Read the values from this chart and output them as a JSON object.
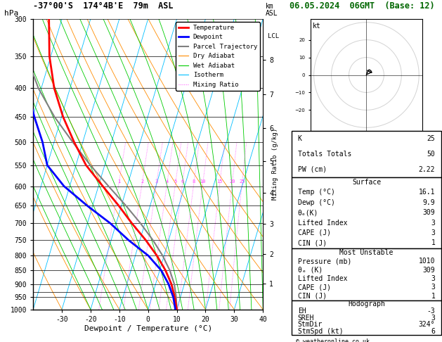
{
  "title_left": "-37°00'S  174°4B'E  79m  ASL",
  "title_right": "06.05.2024  06GMT  (Base: 12)",
  "ylabel_left": "hPa",
  "ylabel_right_km": "km\nASL",
  "ylabel_right_mixing": "Mixing Ratio (g/kg)",
  "xlabel": "Dewpoint / Temperature (°C)",
  "background_color": "#ffffff",
  "plot_bg": "#ffffff",
  "isotherm_color": "#00bfff",
  "dry_adiabat_color": "#ff8c00",
  "wet_adiabat_color": "#00cc00",
  "mixing_ratio_color": "#ff44ff",
  "temp_line_color": "#ff0000",
  "dewp_line_color": "#0000ff",
  "parcel_color": "#808080",
  "grid_color": "#000000",
  "lcl_pres": 930,
  "temp_range": [
    -40,
    40
  ],
  "temp_ticks": [
    -30,
    -20,
    -10,
    0,
    10,
    20,
    30,
    40
  ],
  "pres_levels": [
    300,
    350,
    400,
    450,
    500,
    550,
    600,
    650,
    700,
    750,
    800,
    850,
    900,
    950,
    1000
  ],
  "skew_factor": 30.0,
  "stats": {
    "K": 25,
    "Totals_Totals": 50,
    "PW_cm": 2.22,
    "Surface_Temp_C": 16.1,
    "Surface_Dewp_C": 9.9,
    "Surface_ThetaE_K": 309,
    "Surface_Lifted_Index": 3,
    "Surface_CAPE_J": 3,
    "Surface_CIN_J": 1,
    "MU_Pressure_mb": 1010,
    "MU_ThetaE_K": 309,
    "MU_Lifted_Index": 3,
    "MU_CAPE_J": 3,
    "MU_CIN_J": 1,
    "Hodo_EH": -3,
    "Hodo_SREH": 3,
    "Hodo_StmDir": "324°",
    "Hodo_StmSpd_kt": 6
  },
  "temp_profile_T": [
    10.0,
    8.0,
    5.5,
    2.0,
    -2.5,
    -8.0,
    -14.5,
    -21.0,
    -28.5,
    -36.5,
    -43.0,
    -49.5,
    -55.5,
    -60.5,
    -64.5
  ],
  "temp_profile_P": [
    1000,
    950,
    900,
    850,
    800,
    750,
    700,
    650,
    600,
    550,
    500,
    450,
    400,
    350,
    300
  ],
  "dewp_profile_T": [
    9.5,
    7.5,
    4.5,
    0.5,
    -5.5,
    -14.0,
    -22.0,
    -32.0,
    -42.0,
    -50.0,
    -54.0,
    -59.5,
    -65.0,
    -69.5,
    -73.5
  ],
  "dewp_profile_P": [
    1000,
    950,
    900,
    850,
    800,
    750,
    700,
    650,
    600,
    550,
    500,
    450,
    400,
    350,
    300
  ],
  "parcel_profile_T": [
    10.0,
    8.5,
    6.5,
    3.5,
    -0.5,
    -5.5,
    -11.5,
    -18.5,
    -26.5,
    -35.0,
    -43.5,
    -52.5,
    -61.0,
    -68.5,
    -74.5
  ],
  "parcel_profile_P": [
    1000,
    950,
    900,
    850,
    800,
    750,
    700,
    650,
    600,
    550,
    500,
    450,
    400,
    350,
    300
  ],
  "mixing_ratio_values": [
    1,
    2,
    3,
    4,
    5,
    6,
    8,
    10,
    15,
    20,
    25
  ],
  "mixing_ratio_label_pres": 593,
  "hodo_u": [
    0,
    0.5,
    1.5,
    2.5,
    3.0
  ],
  "hodo_v": [
    0,
    1.5,
    3.0,
    2.5,
    1.5
  ],
  "copyright": "© weatheronline.co.uk"
}
